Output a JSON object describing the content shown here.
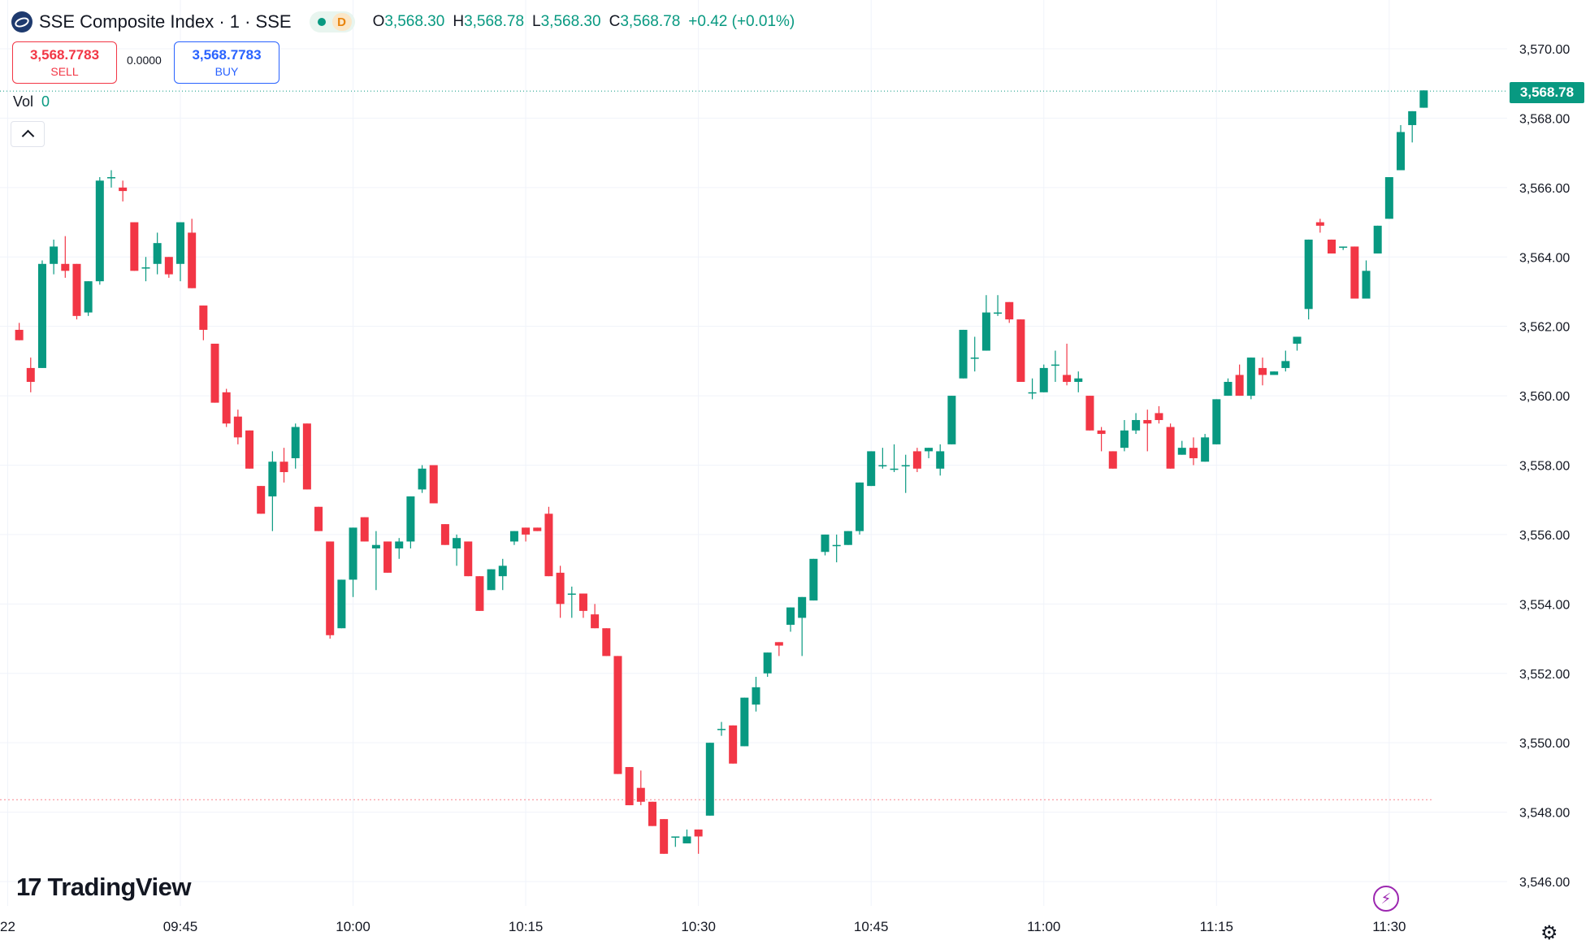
{
  "header": {
    "title": "SSE Composite Index · 1 · SSE",
    "delay_badge": "D",
    "ohlc": [
      {
        "key": "O",
        "value": "3,568.30"
      },
      {
        "key": "H",
        "value": "3,568.78"
      },
      {
        "key": "L",
        "value": "3,568.30"
      },
      {
        "key": "C",
        "value": "3,568.78"
      }
    ],
    "change": "+0.42 (+0.01%)"
  },
  "trade": {
    "sell_price": "3,568.7783",
    "sell_label": "SELL",
    "spread": "0.0000",
    "buy_price": "3,568.7783",
    "buy_label": "BUY"
  },
  "volume": {
    "label": "Vol",
    "value": "0"
  },
  "last_price_label": "3,568.78",
  "brand": "TradingView",
  "icons": {
    "collapse": "chevron-up-icon",
    "signal": "lightning-icon",
    "settings": "gear-icon"
  },
  "colors": {
    "up": "#089981",
    "down": "#f23645",
    "grid": "#f0f3fa",
    "text": "#131722"
  },
  "chart_data": {
    "type": "candlestick",
    "title": "SSE Composite Index",
    "interval": "1 minute",
    "ylim": [
      3545.2,
      3571.1
    ],
    "y_ticks": [
      3546,
      3548,
      3550,
      3552,
      3554,
      3556,
      3558,
      3560,
      3562,
      3564,
      3566,
      3568,
      3570
    ],
    "y_tick_labels": [
      "3,546.00",
      "3,548.00",
      "3,550.00",
      "3,552.00",
      "3,554.00",
      "3,556.00",
      "3,558.00",
      "3,560.00",
      "3,562.00",
      "3,564.00",
      "3,566.00",
      "3,568.00",
      "3,570.00"
    ],
    "x_tick_labels": [
      "22",
      "09:45",
      "10:00",
      "10:15",
      "10:30",
      "10:45",
      "11:00",
      "11:15",
      "11:30"
    ],
    "x_tick_minutes": [
      -15,
      0,
      15,
      30,
      45,
      60,
      75,
      90,
      105
    ],
    "first_candle_minute": -14,
    "previous_close": 3548.36,
    "last_price": 3568.78,
    "candles": [
      [
        3561.9,
        3562.1,
        3561.6,
        3561.6
      ],
      [
        3560.8,
        3561.1,
        3560.1,
        3560.4
      ],
      [
        3560.8,
        3563.9,
        3560.8,
        3563.8
      ],
      [
        3563.8,
        3564.5,
        3563.5,
        3564.3
      ],
      [
        3563.8,
        3564.6,
        3563.4,
        3563.6
      ],
      [
        3563.8,
        3563.8,
        3562.2,
        3562.3
      ],
      [
        3562.4,
        3563.3,
        3562.3,
        3563.3
      ],
      [
        3563.3,
        3566.3,
        3563.2,
        3566.2
      ],
      [
        3566.3,
        3566.5,
        3566.0,
        3566.3
      ],
      [
        3566.0,
        3566.2,
        3565.6,
        3565.9
      ],
      [
        3565.0,
        3565.0,
        3563.6,
        3563.6
      ],
      [
        3563.7,
        3564.0,
        3563.3,
        3563.7
      ],
      [
        3563.8,
        3564.7,
        3563.5,
        3564.4
      ],
      [
        3564.0,
        3564.0,
        3563.4,
        3563.5
      ],
      [
        3563.8,
        3565.0,
        3563.3,
        3565.0
      ],
      [
        3564.7,
        3565.1,
        3563.1,
        3563.1
      ],
      [
        3562.6,
        3562.6,
        3561.6,
        3561.9
      ],
      [
        3561.5,
        3561.5,
        3559.8,
        3559.8
      ],
      [
        3560.1,
        3560.2,
        3559.1,
        3559.2
      ],
      [
        3559.4,
        3559.6,
        3558.6,
        3558.8
      ],
      [
        3559.0,
        3559.0,
        3557.9,
        3557.9
      ],
      [
        3557.4,
        3557.4,
        3556.6,
        3556.6
      ],
      [
        3557.1,
        3558.4,
        3556.1,
        3558.1
      ],
      [
        3558.1,
        3558.5,
        3557.5,
        3557.8
      ],
      [
        3558.2,
        3559.2,
        3557.9,
        3559.1
      ],
      [
        3559.2,
        3559.2,
        3557.3,
        3557.3
      ],
      [
        3556.8,
        3556.8,
        3556.1,
        3556.1
      ],
      [
        3555.8,
        3555.8,
        3553.0,
        3553.1
      ],
      [
        3553.3,
        3554.7,
        3553.3,
        3554.7
      ],
      [
        3554.7,
        3556.2,
        3554.2,
        3556.2
      ],
      [
        3556.5,
        3556.5,
        3555.8,
        3555.8
      ],
      [
        3555.6,
        3556.1,
        3554.4,
        3555.7
      ],
      [
        3555.8,
        3555.8,
        3554.9,
        3554.9
      ],
      [
        3555.6,
        3555.9,
        3555.3,
        3555.8
      ],
      [
        3555.8,
        3557.1,
        3555.6,
        3557.1
      ],
      [
        3557.3,
        3558.0,
        3557.2,
        3557.9
      ],
      [
        3558.0,
        3558.0,
        3556.9,
        3556.9
      ],
      [
        3556.3,
        3556.3,
        3555.7,
        3555.7
      ],
      [
        3555.6,
        3556.0,
        3555.1,
        3555.9
      ],
      [
        3555.8,
        3555.8,
        3554.8,
        3554.8
      ],
      [
        3554.8,
        3554.8,
        3553.8,
        3553.8
      ],
      [
        3554.4,
        3555.0,
        3554.4,
        3555.0
      ],
      [
        3554.8,
        3555.3,
        3554.4,
        3555.1
      ],
      [
        3555.8,
        3556.1,
        3555.7,
        3556.1
      ],
      [
        3556.2,
        3556.2,
        3555.8,
        3556.0
      ],
      [
        3556.2,
        3556.2,
        3556.1,
        3556.1
      ],
      [
        3556.6,
        3556.8,
        3554.8,
        3554.8
      ],
      [
        3554.9,
        3555.1,
        3553.6,
        3554.0
      ],
      [
        3554.3,
        3554.5,
        3553.6,
        3554.3
      ],
      [
        3554.3,
        3554.3,
        3553.6,
        3553.8
      ],
      [
        3553.7,
        3554.0,
        3553.3,
        3553.3
      ],
      [
        3553.3,
        3553.3,
        3552.5,
        3552.5
      ],
      [
        3552.5,
        3552.5,
        3549.1,
        3549.1
      ],
      [
        3549.3,
        3549.3,
        3548.2,
        3548.2
      ],
      [
        3548.7,
        3549.2,
        3548.2,
        3548.3
      ],
      [
        3548.3,
        3548.3,
        3547.6,
        3547.6
      ],
      [
        3547.8,
        3547.8,
        3546.8,
        3546.8
      ],
      [
        3547.3,
        3547.3,
        3547.0,
        3547.3
      ],
      [
        3547.1,
        3547.5,
        3547.1,
        3547.3
      ],
      [
        3547.5,
        3547.5,
        3546.8,
        3547.3
      ],
      [
        3547.9,
        3550.0,
        3547.9,
        3550.0
      ],
      [
        3550.4,
        3550.6,
        3550.2,
        3550.4
      ],
      [
        3550.5,
        3550.5,
        3549.4,
        3549.4
      ],
      [
        3549.9,
        3551.3,
        3549.9,
        3551.3
      ],
      [
        3551.1,
        3551.9,
        3550.9,
        3551.6
      ],
      [
        3552.0,
        3552.6,
        3551.9,
        3552.6
      ],
      [
        3552.9,
        3552.9,
        3552.5,
        3552.8
      ],
      [
        3553.4,
        3553.9,
        3553.2,
        3553.9
      ],
      [
        3553.6,
        3554.2,
        3552.5,
        3554.2
      ],
      [
        3554.1,
        3555.3,
        3554.1,
        3555.3
      ],
      [
        3555.5,
        3556.0,
        3555.4,
        3556.0
      ],
      [
        3555.7,
        3556.0,
        3555.2,
        3555.7
      ],
      [
        3555.7,
        3556.1,
        3555.7,
        3556.1
      ],
      [
        3556.1,
        3557.5,
        3556.0,
        3557.5
      ],
      [
        3557.4,
        3558.4,
        3557.4,
        3558.4
      ],
      [
        3558.0,
        3558.5,
        3557.9,
        3558.0
      ],
      [
        3557.9,
        3558.6,
        3557.8,
        3557.9
      ],
      [
        3558.0,
        3558.3,
        3557.2,
        3558.0
      ],
      [
        3558.4,
        3558.5,
        3557.8,
        3557.9
      ],
      [
        3558.4,
        3558.5,
        3558.2,
        3558.5
      ],
      [
        3557.9,
        3558.6,
        3557.7,
        3558.4
      ],
      [
        3558.6,
        3560.0,
        3558.6,
        3560.0
      ],
      [
        3560.5,
        3561.9,
        3560.5,
        3561.9
      ],
      [
        3561.1,
        3561.7,
        3560.7,
        3561.1
      ],
      [
        3561.3,
        3562.9,
        3561.3,
        3562.4
      ],
      [
        3562.4,
        3562.9,
        3562.3,
        3562.4
      ],
      [
        3562.7,
        3562.7,
        3562.1,
        3562.2
      ],
      [
        3562.2,
        3562.2,
        3560.4,
        3560.4
      ],
      [
        3560.1,
        3560.5,
        3559.9,
        3560.1
      ],
      [
        3560.1,
        3560.9,
        3560.1,
        3560.8
      ],
      [
        3560.9,
        3561.3,
        3560.4,
        3560.9
      ],
      [
        3560.6,
        3561.5,
        3560.3,
        3560.4
      ],
      [
        3560.4,
        3560.7,
        3560.1,
        3560.5
      ],
      [
        3560.0,
        3560.0,
        3559.0,
        3559.0
      ],
      [
        3559.0,
        3559.1,
        3558.4,
        3558.9
      ],
      [
        3558.4,
        3558.4,
        3557.9,
        3557.9
      ],
      [
        3558.5,
        3559.3,
        3558.4,
        3559.0
      ],
      [
        3559.0,
        3559.5,
        3558.9,
        3559.3
      ],
      [
        3559.3,
        3559.6,
        3558.4,
        3559.2
      ],
      [
        3559.5,
        3559.7,
        3559.2,
        3559.3
      ],
      [
        3559.1,
        3559.2,
        3557.9,
        3557.9
      ],
      [
        3558.3,
        3558.7,
        3558.3,
        3558.5
      ],
      [
        3558.5,
        3558.8,
        3558.0,
        3558.2
      ],
      [
        3558.1,
        3558.9,
        3558.1,
        3558.8
      ],
      [
        3558.6,
        3559.9,
        3558.6,
        3559.9
      ],
      [
        3560.0,
        3560.5,
        3560.0,
        3560.4
      ],
      [
        3560.6,
        3560.9,
        3560.0,
        3560.0
      ],
      [
        3560.0,
        3561.1,
        3559.9,
        3561.1
      ],
      [
        3560.8,
        3561.1,
        3560.3,
        3560.6
      ],
      [
        3560.6,
        3560.7,
        3560.6,
        3560.7
      ],
      [
        3560.8,
        3561.3,
        3560.7,
        3561.0
      ],
      [
        3561.5,
        3561.7,
        3561.3,
        3561.7
      ],
      [
        3562.5,
        3564.5,
        3562.2,
        3564.5
      ],
      [
        3565.0,
        3565.1,
        3564.7,
        3564.9
      ],
      [
        3564.5,
        3564.5,
        3564.1,
        3564.1
      ],
      [
        3564.3,
        3564.3,
        3564.2,
        3564.3
      ],
      [
        3564.3,
        3564.3,
        3562.8,
        3562.8
      ],
      [
        3562.8,
        3563.9,
        3562.8,
        3563.6
      ],
      [
        3564.1,
        3564.9,
        3564.1,
        3564.9
      ],
      [
        3565.1,
        3566.3,
        3565.1,
        3566.3
      ],
      [
        3566.5,
        3567.8,
        3566.5,
        3567.6
      ],
      [
        3567.8,
        3568.2,
        3567.3,
        3568.2
      ],
      [
        3568.3,
        3568.8,
        3568.3,
        3568.8
      ]
    ]
  }
}
